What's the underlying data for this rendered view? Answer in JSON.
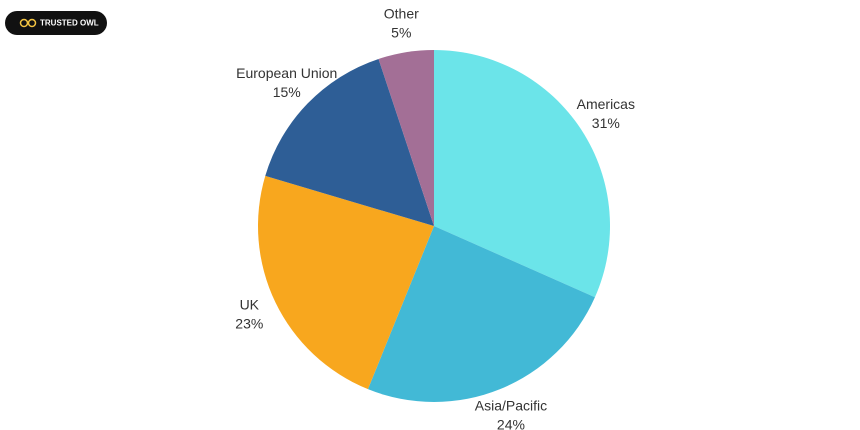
{
  "badge": {
    "text": "TRUSTED OWL"
  },
  "chart_data": {
    "type": "pie",
    "categories": [
      "Americas",
      "Asia/Pacific",
      "UK",
      "European Union",
      "Other"
    ],
    "values": [
      31,
      24,
      23,
      15,
      5
    ],
    "value_labels": [
      "31%",
      "24%",
      "23%",
      "15%",
      "5%"
    ],
    "colors": [
      "#6be4e9",
      "#42b9d6",
      "#f8a71e",
      "#2e5e96",
      "#a36f96"
    ]
  }
}
